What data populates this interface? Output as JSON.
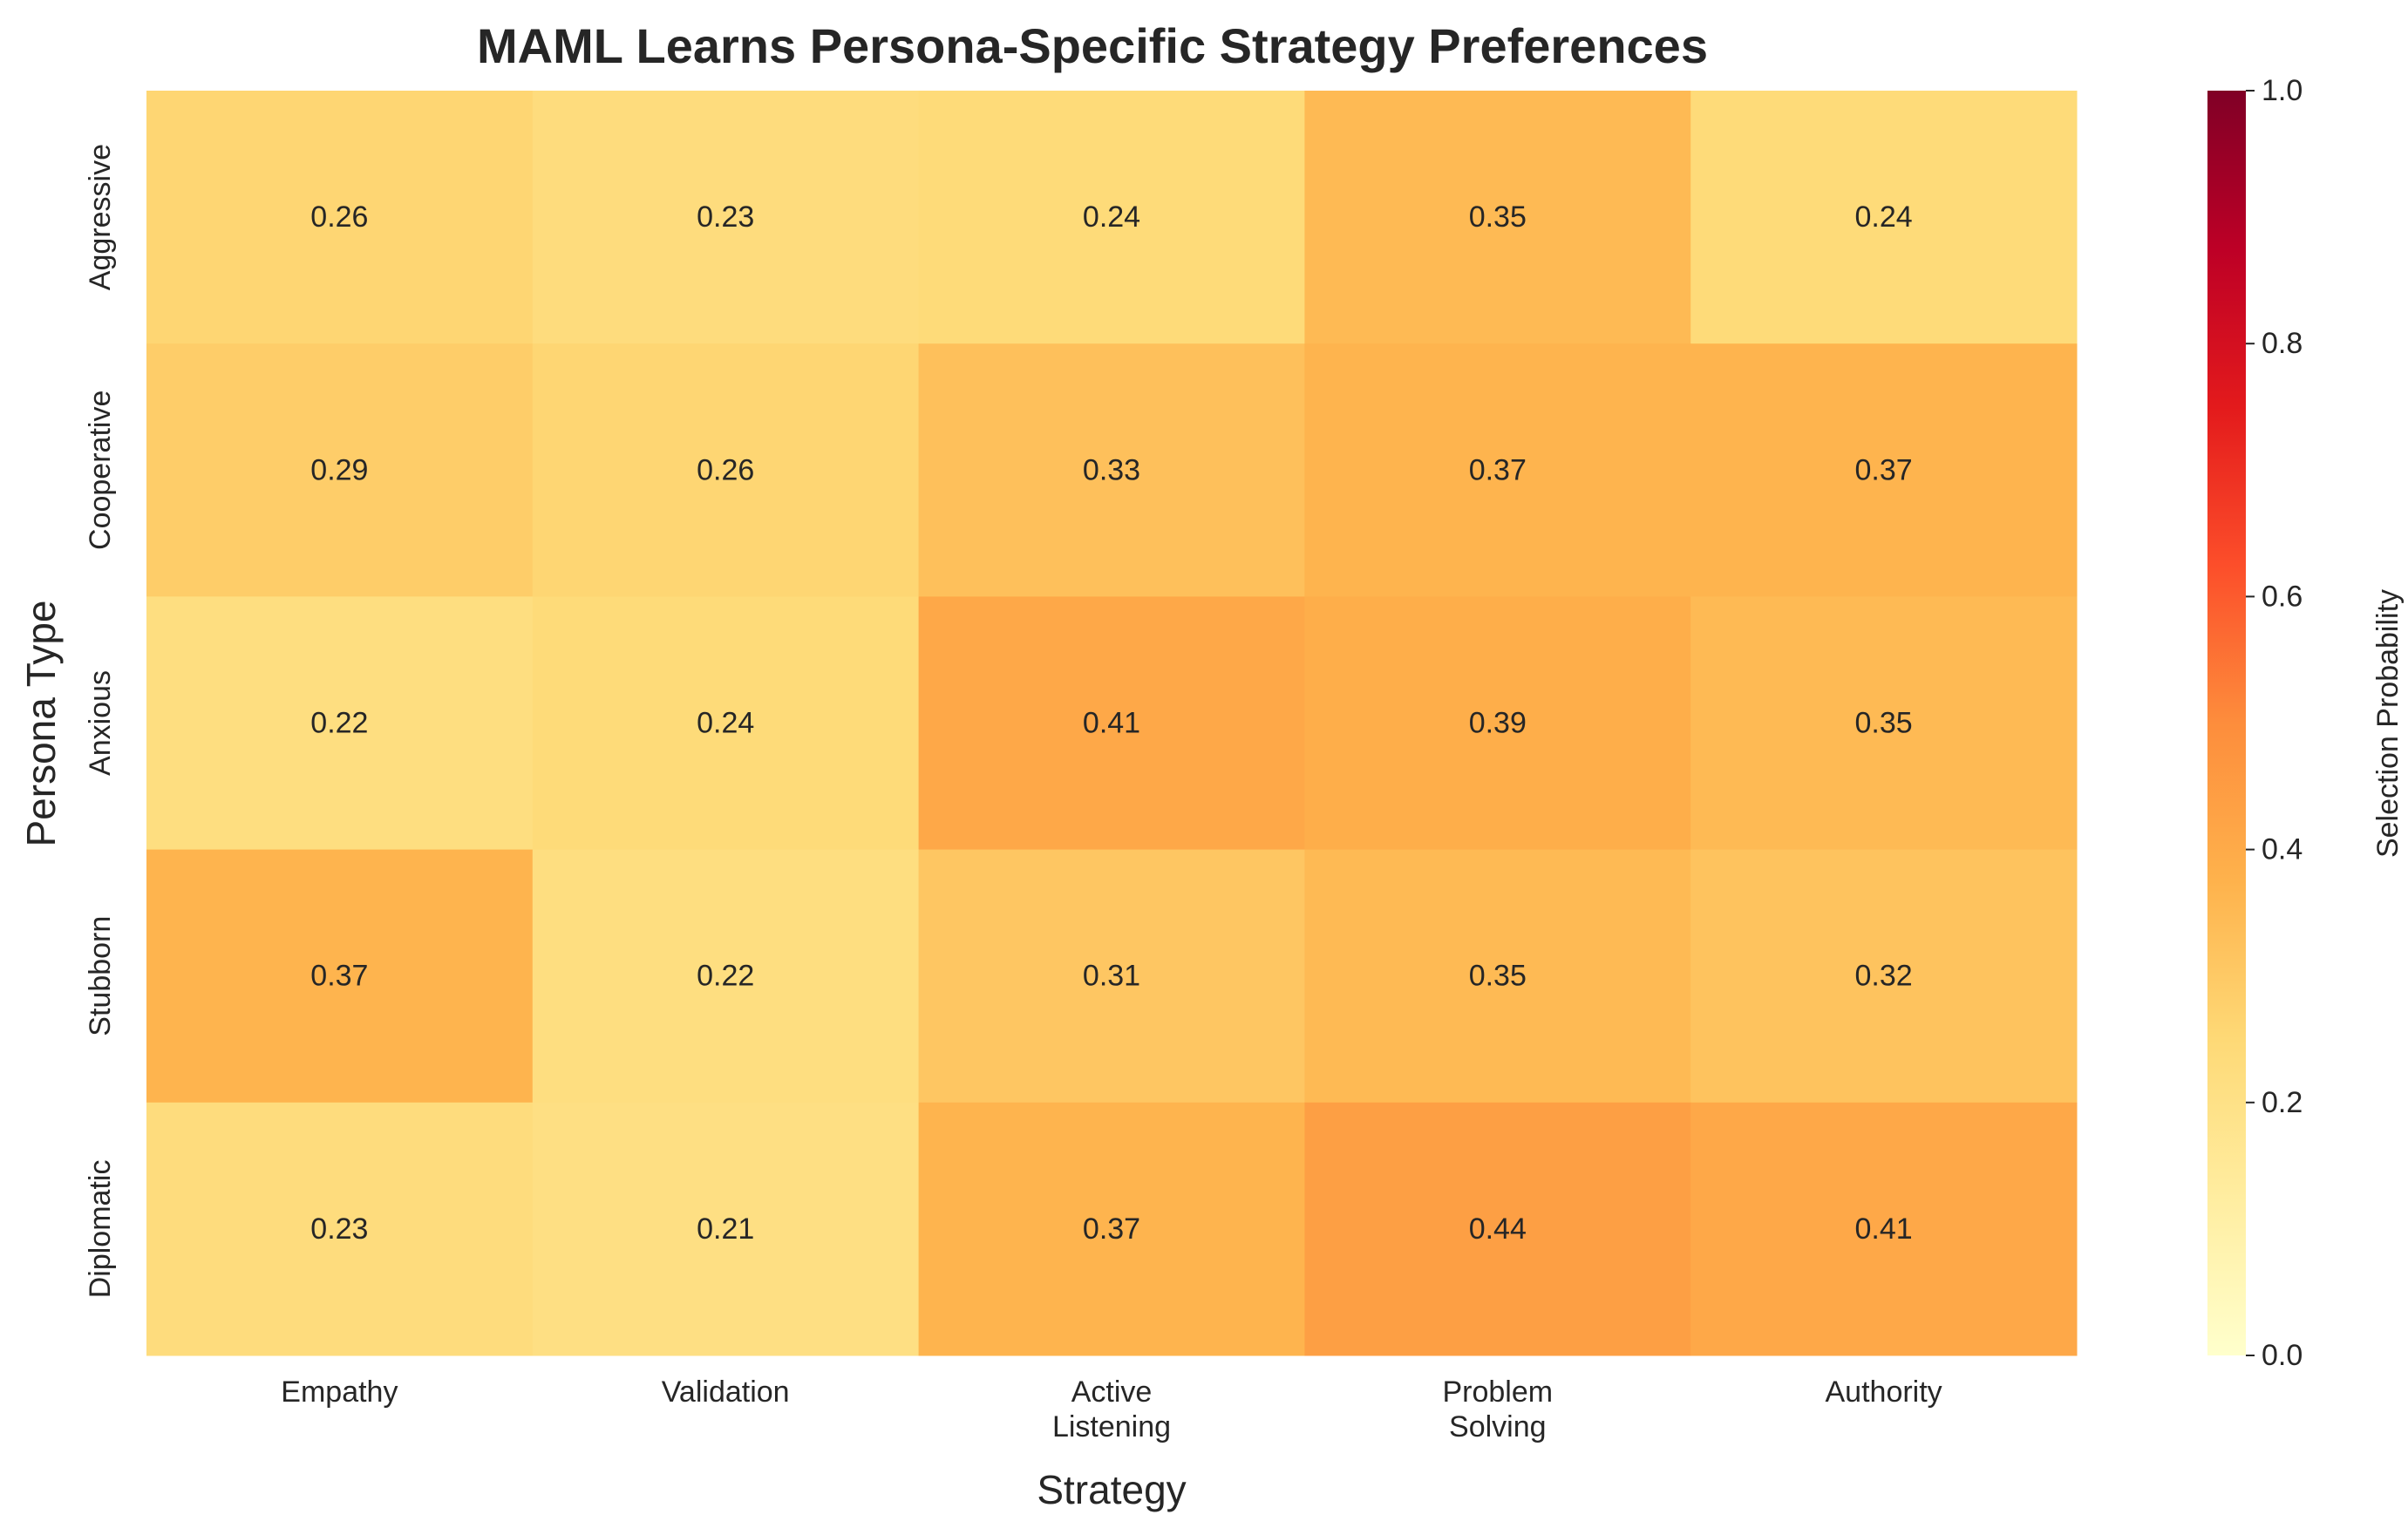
{
  "chart_data": {
    "type": "heatmap",
    "title": "MAML Learns Persona-Specific Strategy Preferences",
    "xlabel": "Strategy",
    "ylabel": "Persona Type",
    "x_categories": [
      "Empathy",
      "Validation",
      "Active\nListening",
      "Problem\nSolving",
      "Authority"
    ],
    "y_categories": [
      "Aggressive",
      "Cooperative",
      "Anxious",
      "Stubborn",
      "Diplomatic"
    ],
    "values": [
      [
        0.26,
        0.23,
        0.24,
        0.35,
        0.24
      ],
      [
        0.29,
        0.26,
        0.33,
        0.37,
        0.37
      ],
      [
        0.22,
        0.24,
        0.41,
        0.39,
        0.35
      ],
      [
        0.37,
        0.22,
        0.31,
        0.35,
        0.32
      ],
      [
        0.23,
        0.21,
        0.37,
        0.44,
        0.41
      ]
    ],
    "value_format": "0.00",
    "colorbar": {
      "label": "Selection Probability",
      "colormap": "YlOrRd",
      "vmin": 0.0,
      "vmax": 1.0,
      "ticks": [
        "0.0",
        "0.2",
        "0.4",
        "0.6",
        "0.8",
        "1.0"
      ],
      "colors": [
        "#ffffcc",
        "#ffeda0",
        "#fed976",
        "#feb24c",
        "#fd8d3c",
        "#fc4e2a",
        "#e31a1c",
        "#bd0026",
        "#800026"
      ]
    },
    "grid": false,
    "legend": "colorbar-right"
  }
}
